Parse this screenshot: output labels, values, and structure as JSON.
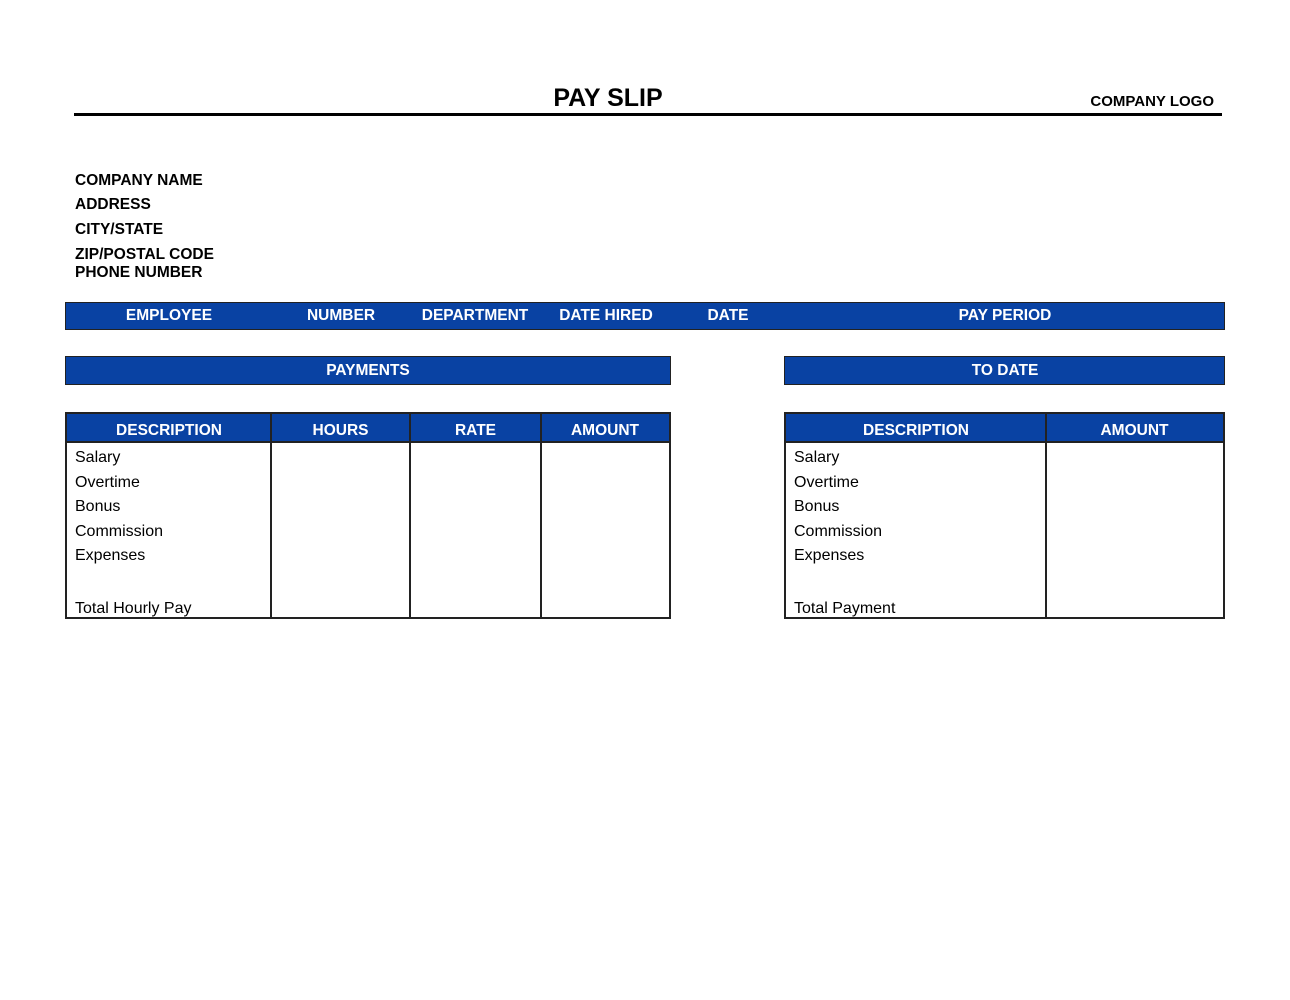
{
  "header": {
    "title": "PAY SLIP",
    "logo": "COMPANY LOGO"
  },
  "company": [
    "COMPANY NAME",
    "ADDRESS",
    "CITY/STATE",
    "ZIP/POSTAL CODE",
    "PHONE NUMBER"
  ],
  "employee_bar": [
    "EMPLOYEE",
    "NUMBER",
    "DEPARTMENT",
    "DATE HIRED",
    "DATE",
    "PAY PERIOD"
  ],
  "payments": {
    "title": "PAYMENTS",
    "columns": [
      "DESCRIPTION",
      "HOURS",
      "RATE",
      "AMOUNT"
    ],
    "rows": [
      "Salary",
      "Overtime",
      "Bonus",
      "Commission",
      "Expenses"
    ],
    "total": "Total Hourly Pay"
  },
  "to_date": {
    "title": "TO DATE",
    "columns": [
      "DESCRIPTION",
      "AMOUNT"
    ],
    "rows": [
      "Salary",
      "Overtime",
      "Bonus",
      "Commission",
      "Expenses"
    ],
    "total": "Total Payment"
  },
  "colors": {
    "accent": "#0942a3"
  }
}
